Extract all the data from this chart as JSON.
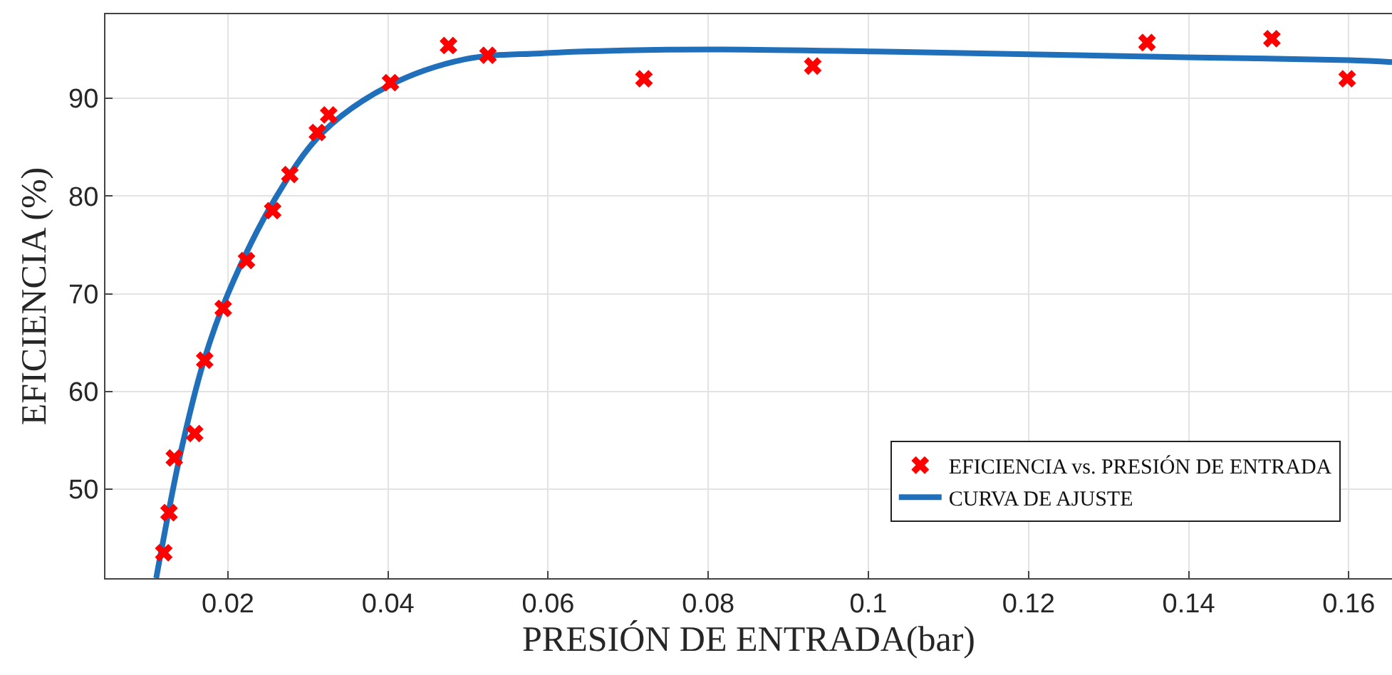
{
  "chart_data": {
    "type": "scatter",
    "xlabel": "PRESIÓN DE ENTRADA(bar)",
    "ylabel": "EFICIENCIA (%)",
    "xlim": [
      0.0047,
      0.1654
    ],
    "ylim": [
      40.9,
      98.6
    ],
    "xticks": [
      0.02,
      0.04,
      0.06,
      0.08,
      {
        "value": 0.1,
        "label": "0.1"
      },
      0.12,
      0.14,
      0.16
    ],
    "yticks": [
      50,
      60,
      70,
      80,
      90
    ],
    "grid": true,
    "legend": "bottom right",
    "series": [
      {
        "name": "EFICIENCIA vs. PRESIÓN DE ENTRADA",
        "marker": "cross",
        "color": "#ff0000",
        "x": [
          0.01199,
          0.01264,
          0.0133,
          0.01585,
          0.0171,
          0.01941,
          0.02232,
          0.02559,
          0.02773,
          0.03117,
          0.03259,
          0.0403,
          0.04755,
          0.05248,
          0.07197,
          0.09305,
          0.1348,
          0.1504,
          0.1598
        ],
        "values": [
          43.5,
          47.6,
          53.2,
          55.7,
          63.2,
          68.5,
          73.4,
          78.5,
          82.2,
          86.5,
          88.3,
          91.6,
          95.4,
          94.4,
          92.0,
          93.3,
          95.7,
          96.1,
          92.0
        ]
      },
      {
        "name": "CURVA DE AJUSTE",
        "type": "line",
        "marker": "none",
        "line_style": "solid",
        "color": "#1f6fba",
        "x": [
          0.01104,
          0.01163,
          0.014,
          0.01698,
          0.01995,
          0.02588,
          0.03182,
          0.04013,
          0.04963,
          0.0591,
          0.0696,
          0.0801,
          0.1001,
          0.12,
          0.1397,
          0.16,
          0.1654
        ],
        "values": [
          40.9,
          43.5,
          53.4,
          63.1,
          69.9,
          79.7,
          86.5,
          91.3,
          94.0,
          94.6,
          94.9,
          95.0,
          94.8,
          94.5,
          94.2,
          93.9,
          93.7
        ]
      }
    ]
  }
}
